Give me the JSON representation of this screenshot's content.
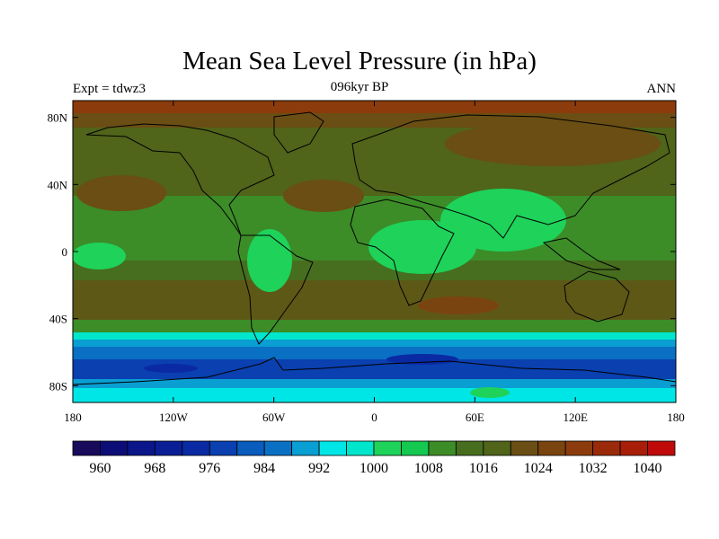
{
  "title": "Mean Sea Level Pressure (in hPa)",
  "experiment": "Expt = tdwz3",
  "period": "096kyr BP",
  "season": "ANN",
  "map": {
    "lat_ticks": [
      {
        "value": 80,
        "label": "80N"
      },
      {
        "value": 40,
        "label": "40N"
      },
      {
        "value": 0,
        "label": "0"
      },
      {
        "value": -40,
        "label": "40S"
      },
      {
        "value": -80,
        "label": "80S"
      }
    ],
    "lon_ticks": [
      {
        "value": -180,
        "label": "180"
      },
      {
        "value": -120,
        "label": "120W"
      },
      {
        "value": -60,
        "label": "60W"
      },
      {
        "value": 0,
        "label": "0"
      },
      {
        "value": 60,
        "label": "60E"
      },
      {
        "value": 120,
        "label": "120E"
      },
      {
        "value": 180,
        "label": "180"
      }
    ],
    "lon_range": [
      -180,
      180
    ],
    "lat_range": [
      -90,
      90
    ]
  },
  "colorbar": {
    "colors": [
      "#1a0a5c",
      "#0d0d78",
      "#0a168a",
      "#0a1e96",
      "#0a2aa3",
      "#0a40b0",
      "#0a5cbd",
      "#0a70c4",
      "#0a9fd2",
      "#00e6e6",
      "#00e6cc",
      "#1ed25a",
      "#14c850",
      "#3c8c28",
      "#466e1e",
      "#50641a",
      "#6a4e14",
      "#7a4410",
      "#8c3c0c",
      "#9a2a0a",
      "#a81e08",
      "#c00a0a"
    ],
    "labels": [
      {
        "after": 1,
        "text": "960"
      },
      {
        "after": 3,
        "text": "968"
      },
      {
        "after": 5,
        "text": "976"
      },
      {
        "after": 7,
        "text": "984"
      },
      {
        "after": 9,
        "text": "992"
      },
      {
        "after": 11,
        "text": "1000"
      },
      {
        "after": 13,
        "text": "1008"
      },
      {
        "after": 15,
        "text": "1016"
      },
      {
        "after": 17,
        "text": "1024"
      },
      {
        "after": 19,
        "text": "1032"
      },
      {
        "after": 21,
        "text": "1040"
      }
    ]
  }
}
